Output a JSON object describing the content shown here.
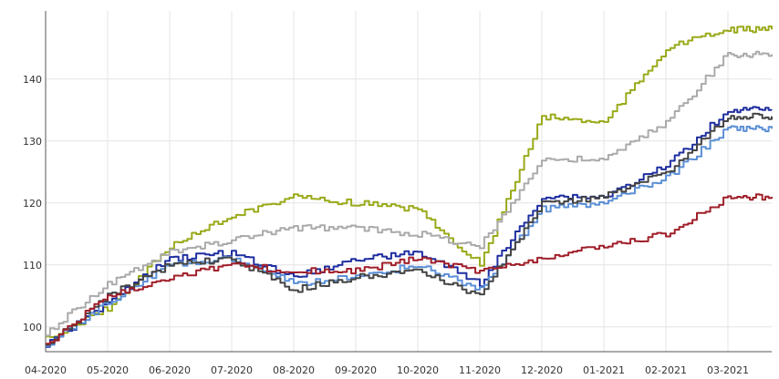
{
  "chart_data": {
    "type": "line",
    "title": "",
    "xlabel": "",
    "ylabel": "",
    "x_tick_labels": [
      "04-2020",
      "05-2020",
      "06-2020",
      "07-2020",
      "08-2020",
      "09-2020",
      "10-2020",
      "11-2020",
      "12-2020",
      "01-2021",
      "02-2021",
      "03-2021"
    ],
    "y_tick_labels": [
      "100",
      "110",
      "120",
      "130",
      "140"
    ],
    "ylim": [
      96,
      151
    ],
    "grid": true,
    "legend": "none",
    "series": [
      {
        "color": "#9aaa1a",
        "x": [
          "04-2020",
          "05-2020",
          "06-2020",
          "07-2020",
          "08-2020",
          "09-2020",
          "10-2020",
          "11-2020",
          "12-2020",
          "01-2021",
          "02-2021",
          "03-2021"
        ],
        "values": [
          98,
          103,
          113,
          118,
          121,
          120,
          119,
          110,
          134,
          133,
          145,
          148
        ]
      },
      {
        "color": "#aaaaaa",
        "x": [
          "04-2020",
          "05-2020",
          "06-2020",
          "07-2020",
          "08-2020",
          "09-2020",
          "10-2020",
          "11-2020",
          "12-2020",
          "01-2021",
          "02-2021",
          "03-2021"
        ],
        "values": [
          99,
          107,
          112,
          114,
          116,
          116,
          115,
          113,
          127,
          127,
          133,
          144
        ]
      },
      {
        "color": "#1f2fa0",
        "x": [
          "04-2020",
          "05-2020",
          "06-2020",
          "07-2020",
          "08-2020",
          "09-2020",
          "10-2020",
          "11-2020",
          "12-2020",
          "01-2021",
          "02-2021",
          "03-2021"
        ],
        "values": [
          97,
          104,
          111,
          112,
          108,
          111,
          112,
          107,
          121,
          121,
          126,
          135
        ]
      },
      {
        "color": "#5b8fd6",
        "x": [
          "04-2020",
          "05-2020",
          "06-2020",
          "07-2020",
          "08-2020",
          "09-2020",
          "10-2020",
          "11-2020",
          "12-2020",
          "01-2021",
          "02-2021",
          "03-2021"
        ],
        "values": [
          97,
          104,
          110,
          111,
          107,
          108,
          110,
          106,
          119,
          120,
          124,
          132
        ]
      },
      {
        "color": "#444444",
        "x": [
          "04-2020",
          "05-2020",
          "06-2020",
          "07-2020",
          "08-2020",
          "09-2020",
          "10-2020",
          "11-2020",
          "12-2020",
          "01-2021",
          "02-2021",
          "03-2021"
        ],
        "values": [
          97,
          105,
          110,
          111,
          106,
          108,
          109,
          105,
          120,
          121,
          125,
          134
        ]
      },
      {
        "color": "#a01f2a",
        "x": [
          "04-2020",
          "05-2020",
          "06-2020",
          "07-2020",
          "08-2020",
          "09-2020",
          "10-2020",
          "11-2020",
          "12-2020",
          "01-2021",
          "02-2021",
          "03-2021"
        ],
        "values": [
          97,
          105,
          108,
          110,
          109,
          109,
          111,
          109,
          111,
          113,
          115,
          121
        ]
      }
    ]
  }
}
